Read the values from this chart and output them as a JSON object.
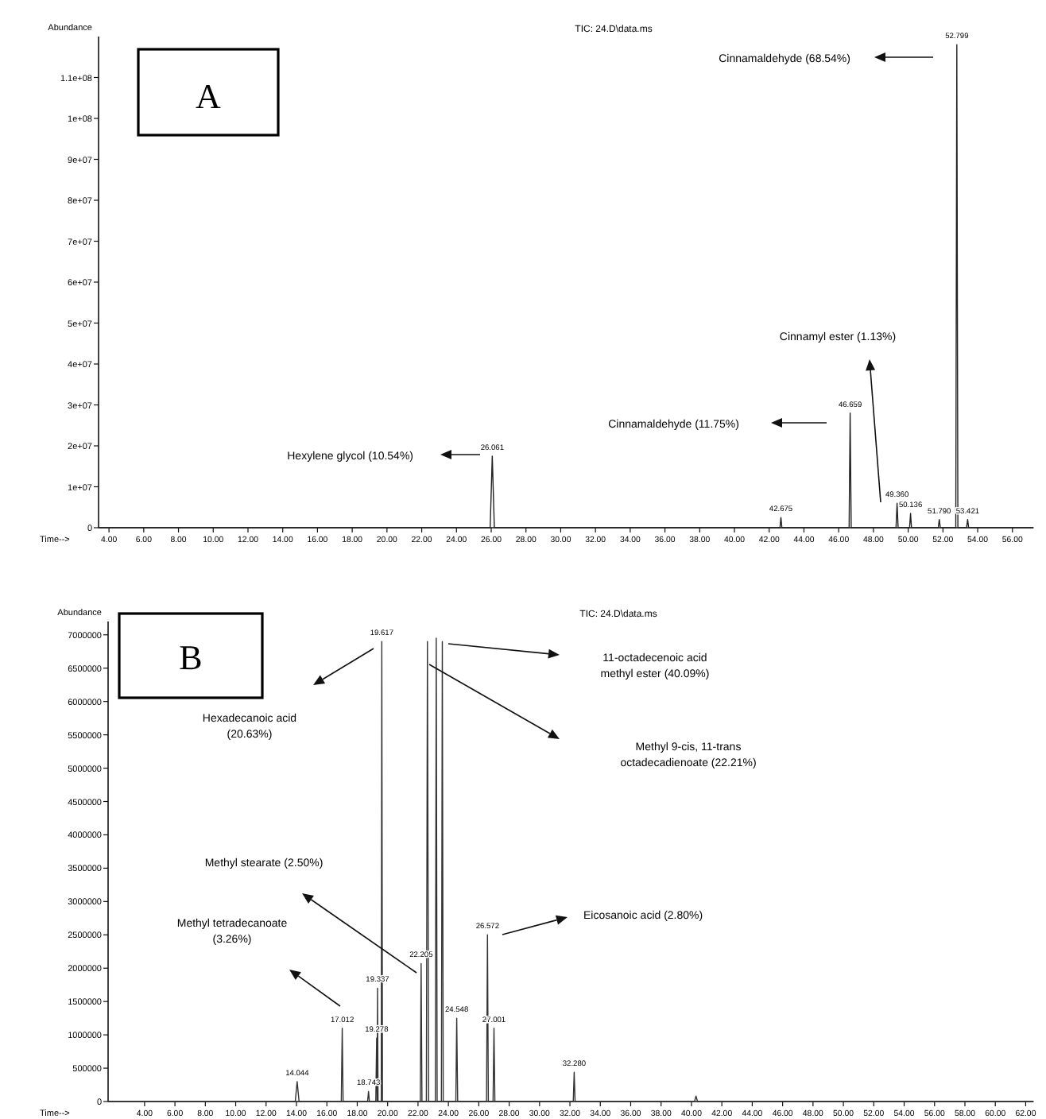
{
  "chart_data": [
    {
      "type": "line",
      "title": "TIC: 24.D\\data.ms",
      "xlabel": "Time-->",
      "ylabel": "Abundance",
      "xlim": [
        3.4,
        57.2
      ],
      "xticks": [
        {
          "value": 4,
          "label": "4.00"
        },
        {
          "value": 6,
          "label": "6.00"
        },
        {
          "value": 8,
          "label": "8.00"
        },
        {
          "value": 10,
          "label": "10.00"
        },
        {
          "value": 12,
          "label": "12.00"
        },
        {
          "value": 14,
          "label": "14.00"
        },
        {
          "value": 16,
          "label": "16.00"
        },
        {
          "value": 18,
          "label": "18.00"
        },
        {
          "value": 20,
          "label": "20.00"
        },
        {
          "value": 22,
          "label": "22.00"
        },
        {
          "value": 24,
          "label": "24.00"
        },
        {
          "value": 26,
          "label": "26.00"
        },
        {
          "value": 28,
          "label": "28.00"
        },
        {
          "value": 30,
          "label": "30.00"
        },
        {
          "value": 32,
          "label": "32.00"
        },
        {
          "value": 34,
          "label": "34.00"
        },
        {
          "value": 36,
          "label": "36.00"
        },
        {
          "value": 38,
          "label": "38.00"
        },
        {
          "value": 40,
          "label": "40.00"
        },
        {
          "value": 42,
          "label": "42.00"
        },
        {
          "value": 44,
          "label": "44.00"
        },
        {
          "value": 46,
          "label": "46.00"
        },
        {
          "value": 48,
          "label": "48.00"
        },
        {
          "value": 50,
          "label": "50.00"
        },
        {
          "value": 52,
          "label": "52.00"
        },
        {
          "value": 54,
          "label": "54.00"
        },
        {
          "value": 56,
          "label": "56.00"
        }
      ],
      "ylim": [
        0,
        120000000
      ],
      "yticks": [
        0,
        {
          "value": 10000000,
          "label": "1e+07"
        },
        {
          "value": 20000000,
          "label": "2e+07"
        },
        {
          "value": 30000000,
          "label": "3e+07"
        },
        {
          "value": 40000000,
          "label": "4e+07"
        },
        {
          "value": 50000000,
          "label": "5e+07"
        },
        {
          "value": 60000000,
          "label": "6e+07"
        },
        {
          "value": 70000000,
          "label": "7e+07"
        },
        {
          "value": 80000000,
          "label": "8e+07"
        },
        {
          "value": 90000000,
          "label": "9e+07"
        },
        {
          "value": 100000000,
          "label": "1e+08"
        },
        {
          "value": 110000000,
          "label": "1.1e+08"
        }
      ],
      "grid": false,
      "series": [
        {
          "color": "#222222",
          "x": [
            3.4,
            25.94,
            26.061,
            26.18,
            42.62,
            42.675,
            42.73,
            46.6,
            46.659,
            46.72,
            49.3,
            49.36,
            49.42,
            50.08,
            50.136,
            50.19,
            51.73,
            51.79,
            51.85,
            52.74,
            52.799,
            52.86,
            53.36,
            53.421,
            53.48,
            57.2
          ],
          "values": [
            0,
            0,
            17500000,
            0,
            0,
            2500000,
            0,
            0,
            28000000,
            0,
            0,
            6000000,
            0,
            0,
            3500000,
            0,
            0,
            2000000,
            0,
            0,
            118000000,
            0,
            0,
            2000000,
            0,
            0
          ]
        }
      ],
      "annotations": [
        "A",
        "Cinnamaldehyde (68.54%)",
        "Cinnamyl ester (1.13%)",
        "Cinnamaldehyde (11.75%)",
        "Hexylene glycol (10.54%)",
        {
          "text": "26.061",
          "x": 26.061,
          "y": 17500000
        },
        {
          "text": "42.675",
          "x": 42.675,
          "y": 2500000
        },
        {
          "text": "46.659",
          "x": 46.659,
          "y": 28000000
        },
        {
          "text": "49.360",
          "x": 49.36,
          "y": 6000000
        },
        {
          "text": "50.136",
          "x": 50.136,
          "y": 3500000
        },
        {
          "text": "51.790",
          "x": 51.79,
          "y": 2000000
        },
        {
          "text": "52.799",
          "x": 52.799,
          "y": 118000000
        },
        {
          "text": "53.421",
          "x": 53.421,
          "y": 2000000
        }
      ]
    },
    {
      "type": "line",
      "title": "TIC: 24.D\\data.ms",
      "xlabel": "Time-->",
      "ylabel": "Abundance",
      "xlim": [
        1.6,
        62.5
      ],
      "xticks": [
        {
          "value": 4,
          "label": "4.00"
        },
        {
          "value": 6,
          "label": "6.00"
        },
        {
          "value": 8,
          "label": "8.00"
        },
        {
          "value": 10,
          "label": "10.00"
        },
        {
          "value": 12,
          "label": "12.00"
        },
        {
          "value": 14,
          "label": "14.00"
        },
        {
          "value": 16,
          "label": "16.00"
        },
        {
          "value": 18,
          "label": "18.00"
        },
        {
          "value": 20,
          "label": "20.00"
        },
        {
          "value": 22,
          "label": "22.00"
        },
        {
          "value": 24,
          "label": "24.00"
        },
        {
          "value": 26,
          "label": "26.00"
        },
        {
          "value": 28,
          "label": "28.00"
        },
        {
          "value": 30,
          "label": "30.00"
        },
        {
          "value": 32,
          "label": "32.00"
        },
        {
          "value": 34,
          "label": "34.00"
        },
        {
          "value": 36,
          "label": "36.00"
        },
        {
          "value": 38,
          "label": "38.00"
        },
        {
          "value": 40,
          "label": "40.00"
        },
        {
          "value": 42,
          "label": "42.00"
        },
        {
          "value": 44,
          "label": "44.00"
        },
        {
          "value": 46,
          "label": "46.00"
        },
        {
          "value": 48,
          "label": "48.00"
        },
        {
          "value": 50,
          "label": "50.00"
        },
        {
          "value": 52,
          "label": "52.00"
        },
        {
          "value": 54,
          "label": "54.00"
        },
        {
          "value": 56,
          "label": "56.00"
        },
        {
          "value": 58,
          "label": "58.00"
        },
        {
          "value": 60,
          "label": "60.00"
        },
        {
          "value": 62,
          "label": "62.00"
        }
      ],
      "ylim": [
        0,
        7200000
      ],
      "yticks": [
        0,
        500000,
        1000000,
        1500000,
        2000000,
        2500000,
        3000000,
        3500000,
        4000000,
        4500000,
        5000000,
        5500000,
        6000000,
        6500000,
        7000000
      ],
      "grid": false,
      "series": [
        {
          "color": "#333333",
          "x": [
            1.6,
            13.92,
            14.044,
            14.17,
            16.95,
            17.012,
            17.07,
            18.68,
            18.743,
            18.8,
            19.22,
            19.278,
            19.31,
            19.337,
            19.37,
            19.58,
            19.617,
            19.66,
            22.15,
            22.205,
            22.26,
            22.55,
            22.62,
            22.7,
            23.14,
            23.2,
            23.26,
            23.54,
            23.6,
            23.66,
            24.49,
            24.548,
            24.61,
            26.51,
            26.572,
            26.63,
            26.94,
            27.001,
            27.06,
            32.22,
            32.28,
            32.34,
            40.2,
            40.3,
            40.4,
            62.5
          ],
          "values": [
            0,
            0,
            300000,
            0,
            0,
            1100000,
            0,
            0,
            150000,
            0,
            0,
            950000,
            0,
            1700000,
            0,
            0,
            6900000,
            0,
            0,
            2070000,
            0,
            0,
            6900000,
            0,
            0,
            6950000,
            0,
            0,
            6900000,
            0,
            0,
            1250000,
            0,
            0,
            2500000,
            0,
            0,
            1100000,
            0,
            0,
            440000,
            0,
            0,
            80000,
            0,
            0
          ]
        }
      ],
      "annotations": [
        "B",
        "Hexadecanoic acid (20.63%)",
        "11-octadecenoic acid methyl ester (40.09%)",
        "Methyl 9-cis, 11-trans octadecadienoate (22.21%)",
        "Methyl stearate (2.50%)",
        "Methyl tetradecanoate (3.26%)",
        "Eicosanoic acid (2.80%)",
        {
          "text": "14.044",
          "x": 14.044,
          "y": 300000
        },
        {
          "text": "17.012",
          "x": 17.012,
          "y": 1100000
        },
        {
          "text": "18.743",
          "x": 18.743,
          "y": 150000
        },
        {
          "text": "19.278",
          "x": 19.278,
          "y": 950000
        },
        {
          "text": "19.337",
          "x": 19.337,
          "y": 1700000
        },
        {
          "text": "19.617",
          "x": 19.617,
          "y": 6900000
        },
        {
          "text": "22.205",
          "x": 22.205,
          "y": 2070000
        },
        {
          "text": "24.548",
          "x": 24.548,
          "y": 1250000
        },
        {
          "text": "26.572",
          "x": 26.572,
          "y": 2500000
        },
        {
          "text": "27.001",
          "x": 27.001,
          "y": 1100000
        },
        {
          "text": "32.280",
          "x": 32.28,
          "y": 440000
        }
      ]
    }
  ]
}
